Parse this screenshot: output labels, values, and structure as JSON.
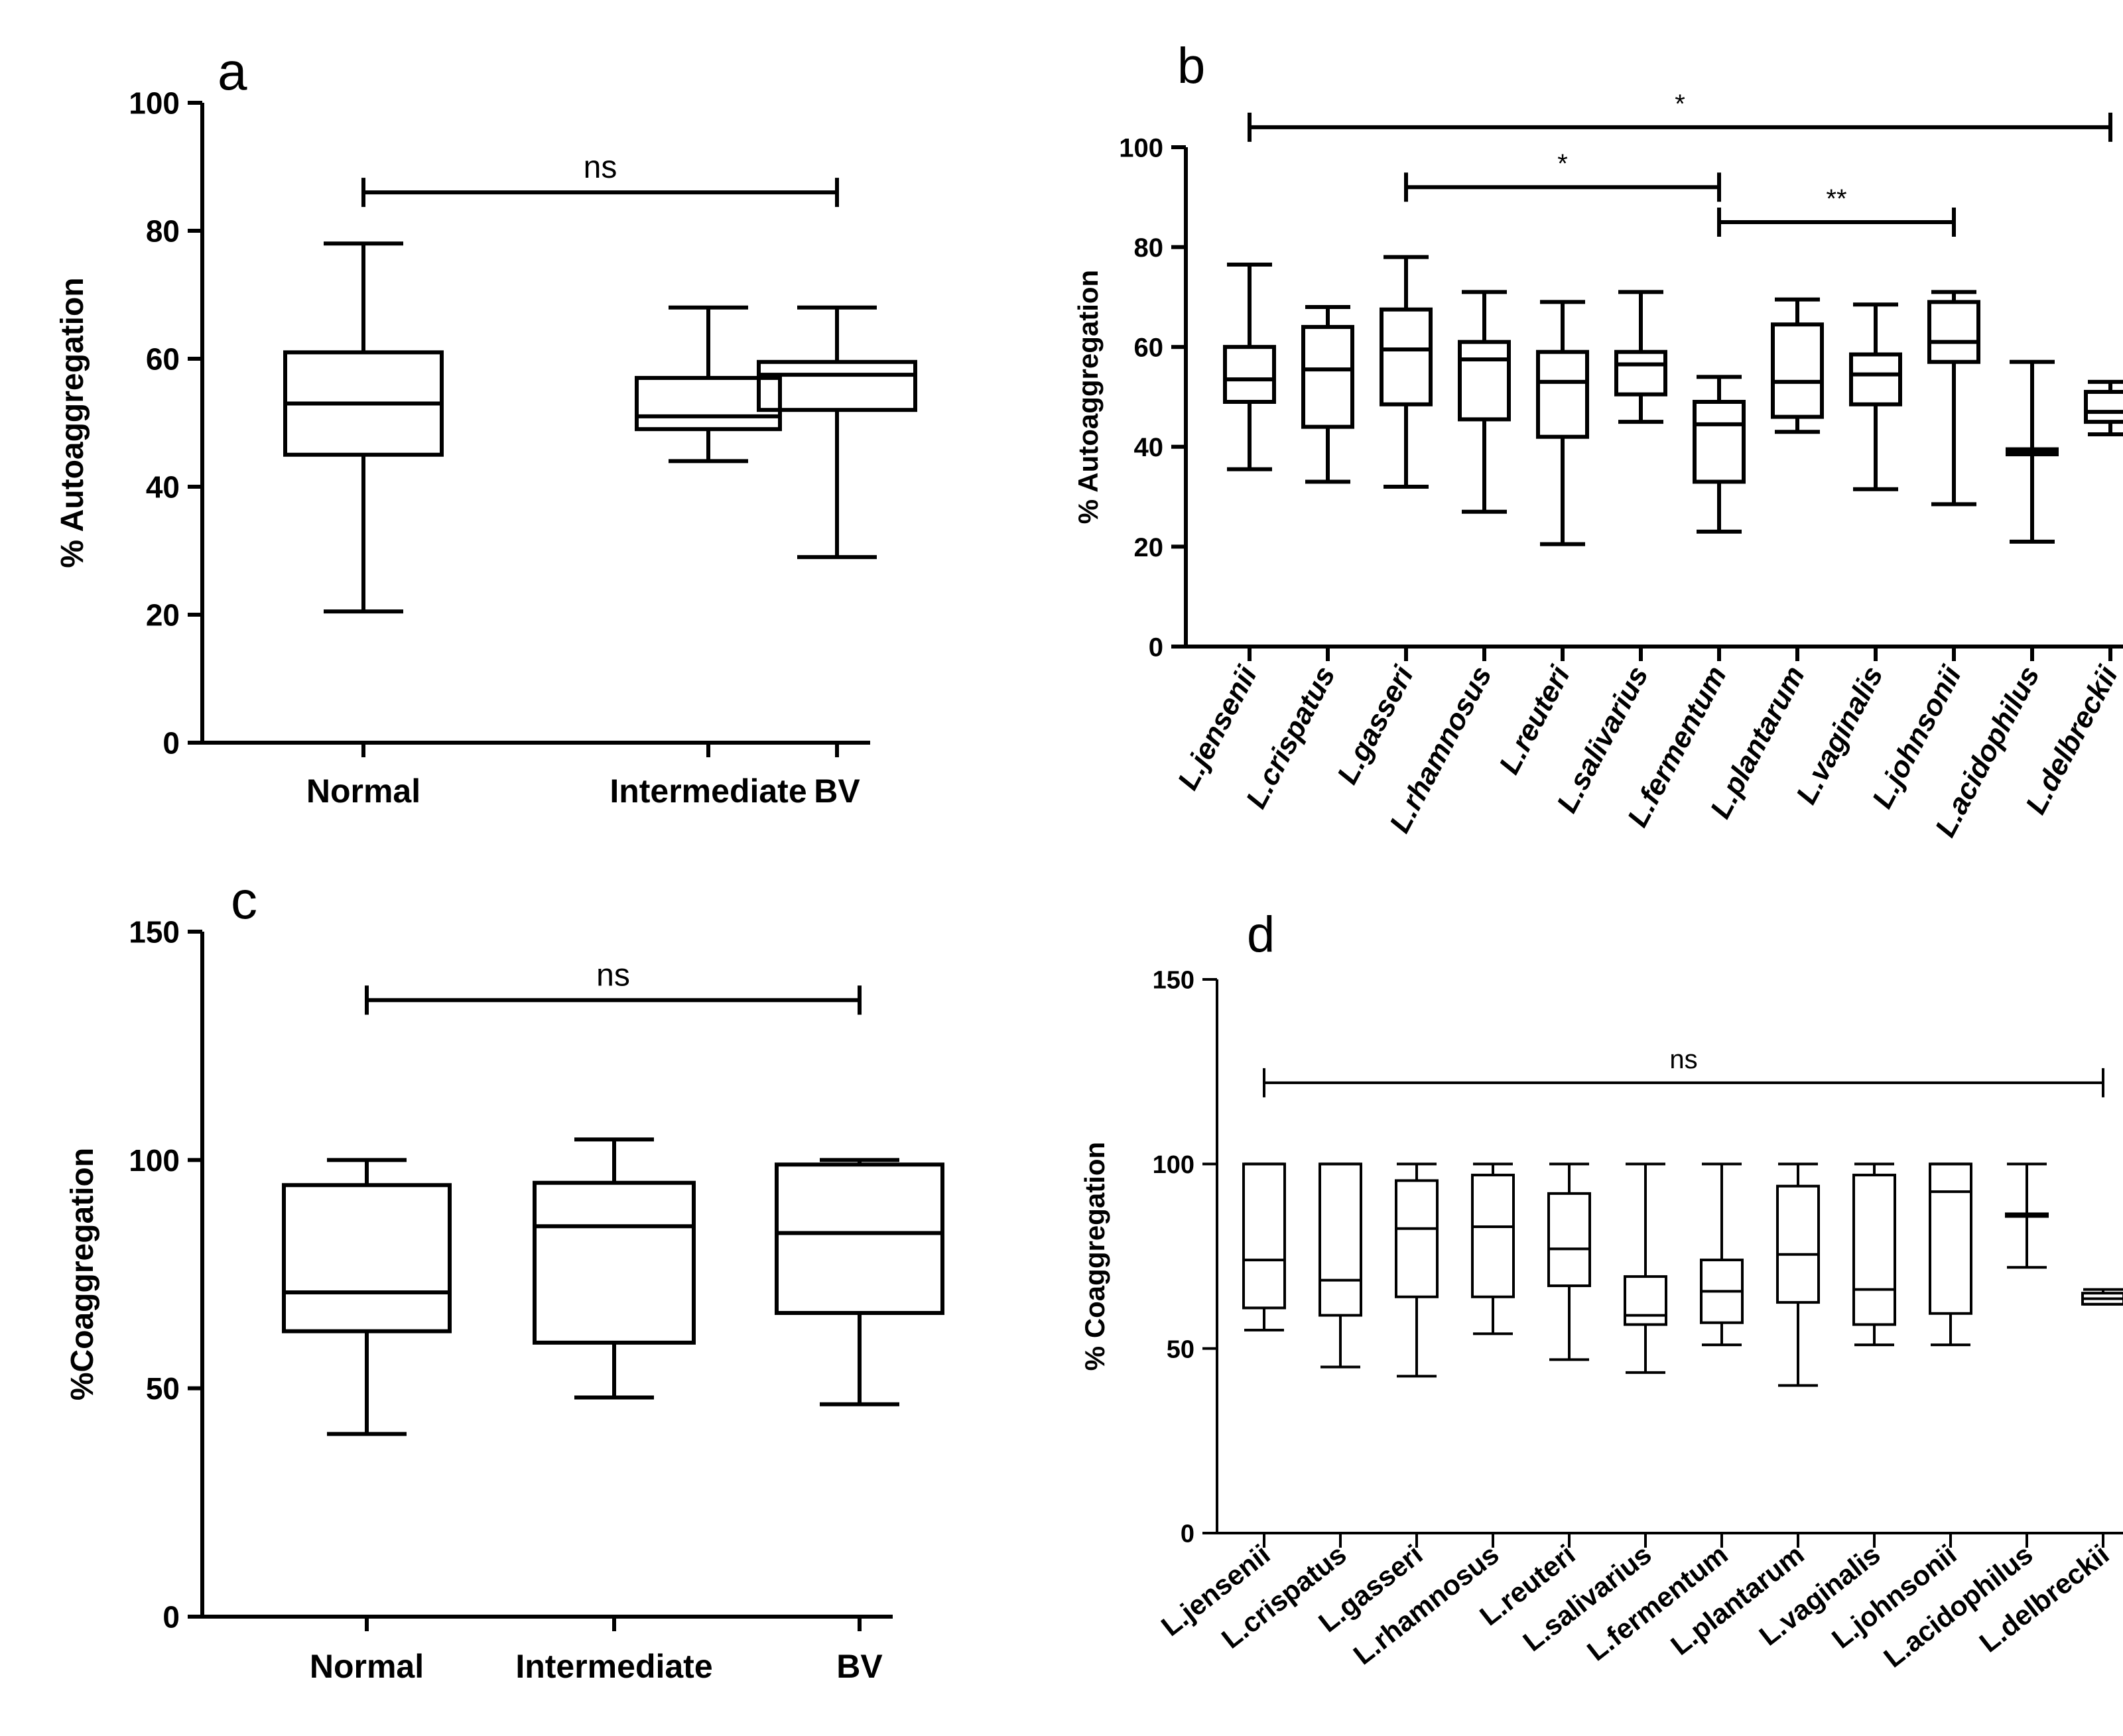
{
  "chart_data": [
    {
      "type": "boxplot",
      "panel": "a",
      "ylabel": "% Autoaggregation",
      "ylim": [
        0,
        100
      ],
      "yticks": [
        0,
        20,
        40,
        60,
        80,
        100
      ],
      "categories": [
        "Normal",
        "Intermediate",
        "BV"
      ],
      "boxes": [
        {
          "min": 20.5,
          "q1": 45,
          "median": 53,
          "q3": 61,
          "max": 78
        },
        {
          "min": 44,
          "q1": 49,
          "median": 51,
          "q3": 57,
          "max": 68
        },
        {
          "min": 29,
          "q1": 52,
          "median": 57.5,
          "q3": 59.5,
          "max": 68
        }
      ],
      "comparisons": [
        {
          "from": 0,
          "to": 2,
          "y": 86,
          "label": "ns"
        }
      ]
    },
    {
      "type": "boxplot",
      "panel": "b",
      "ylabel": "% Autoaggregation",
      "ylim": [
        0,
        100
      ],
      "yticks": [
        0,
        20,
        40,
        60,
        80,
        100
      ],
      "categories": [
        "L.jensenii",
        "L.crispatus",
        "L.gasseri",
        "L.rhamnosus",
        "L.reuteri",
        "L.salivarius",
        "L.fermentum",
        "L.plantarum",
        "L.vaginalis",
        "L.johnsonii",
        "L.acidophilus",
        "L.delbreckii"
      ],
      "boxes": [
        {
          "min": 35.5,
          "q1": 49,
          "median": 53.5,
          "q3": 60,
          "max": 76.5
        },
        {
          "min": 33,
          "q1": 44,
          "median": 55.5,
          "q3": 64,
          "max": 68
        },
        {
          "min": 32,
          "q1": 48.5,
          "median": 59.5,
          "q3": 67.5,
          "max": 78
        },
        {
          "min": 27,
          "q1": 45.5,
          "median": 57.5,
          "q3": 61,
          "max": 71
        },
        {
          "min": 20.5,
          "q1": 42,
          "median": 53,
          "q3": 59,
          "max": 69
        },
        {
          "min": 45,
          "q1": 50.5,
          "median": 56.5,
          "q3": 59,
          "max": 71
        },
        {
          "min": 23,
          "q1": 33,
          "median": 44.5,
          "q3": 49,
          "max": 54
        },
        {
          "min": 43,
          "q1": 46,
          "median": 53,
          "q3": 64.5,
          "max": 69.5
        },
        {
          "min": 31.5,
          "q1": 48.5,
          "median": 54.5,
          "q3": 58.5,
          "max": 68.5
        },
        {
          "min": 28.5,
          "q1": 57,
          "median": 61,
          "q3": 69,
          "max": 71
        },
        {
          "min": 21,
          "q1": 38.5,
          "median": 39,
          "q3": 39.5,
          "max": 57
        },
        {
          "min": 42.5,
          "q1": 45,
          "median": 47,
          "q3": 51,
          "max": 53
        }
      ],
      "comparisons": [
        {
          "from": 0,
          "to": 11,
          "y": 104,
          "label": "*"
        },
        {
          "from": 2,
          "to": 6,
          "y": 92,
          "label": "*"
        },
        {
          "from": 6,
          "to": 9,
          "y": 85,
          "label": "**"
        }
      ]
    },
    {
      "type": "boxplot",
      "panel": "c",
      "ylabel": "%Coaggregation",
      "ylim": [
        0,
        150
      ],
      "yticks": [
        0,
        50,
        100,
        150
      ],
      "categories": [
        "Normal",
        "Intermediate",
        "BV"
      ],
      "boxes": [
        {
          "min": 40,
          "q1": 62.5,
          "median": 71,
          "q3": 94.5,
          "max": 100
        },
        {
          "min": 48,
          "q1": 60,
          "median": 85.5,
          "q3": 95,
          "max": 104.5
        },
        {
          "min": 46.5,
          "q1": 66.5,
          "median": 84,
          "q3": 99,
          "max": 100
        }
      ],
      "comparisons": [
        {
          "from": 0,
          "to": 2,
          "y": 135,
          "label": "ns"
        }
      ]
    },
    {
      "type": "boxplot",
      "panel": "d",
      "ylabel": "% Coaggregation",
      "ylim": [
        0,
        150
      ],
      "yticks": [
        0,
        50,
        100,
        150
      ],
      "categories": [
        "L.jensenii",
        "L.crispatus",
        "L.gasseri",
        "L.rhamnosus",
        "L.reuteri",
        "L.salivarius",
        "L.fermentum",
        "L.plantarum",
        "L.vaginalis",
        "L.johnsonii",
        "L.acidophilus",
        "L.delbreckii"
      ],
      "boxes": [
        {
          "min": 55,
          "q1": 61,
          "median": 74,
          "q3": 100,
          "max": 100
        },
        {
          "min": 45,
          "q1": 59,
          "median": 68.5,
          "q3": 100,
          "max": 100
        },
        {
          "min": 42.5,
          "q1": 64,
          "median": 82.5,
          "q3": 95.5,
          "max": 100
        },
        {
          "min": 54,
          "q1": 64,
          "median": 83,
          "q3": 97,
          "max": 100
        },
        {
          "min": 47,
          "q1": 67,
          "median": 77,
          "q3": 92,
          "max": 100
        },
        {
          "min": 43.5,
          "q1": 56.5,
          "median": 59,
          "q3": 69.5,
          "max": 100
        },
        {
          "min": 51,
          "q1": 57,
          "median": 65.5,
          "q3": 74,
          "max": 100
        },
        {
          "min": 40,
          "q1": 62.5,
          "median": 75.5,
          "q3": 94,
          "max": 100
        },
        {
          "min": 51,
          "q1": 56.5,
          "median": 66,
          "q3": 97,
          "max": 100
        },
        {
          "min": 51,
          "q1": 59.5,
          "median": 92.5,
          "q3": 100,
          "max": 100
        },
        {
          "min": 72,
          "q1": 86.5,
          "median": 86.5,
          "q3": 86.5,
          "max": 100
        },
        {
          "min": 62,
          "q1": 62,
          "median": 63.5,
          "q3": 65,
          "max": 66
        }
      ],
      "comparisons": [
        {
          "from": 0,
          "to": 11,
          "y": 122,
          "label": "ns"
        }
      ]
    }
  ]
}
